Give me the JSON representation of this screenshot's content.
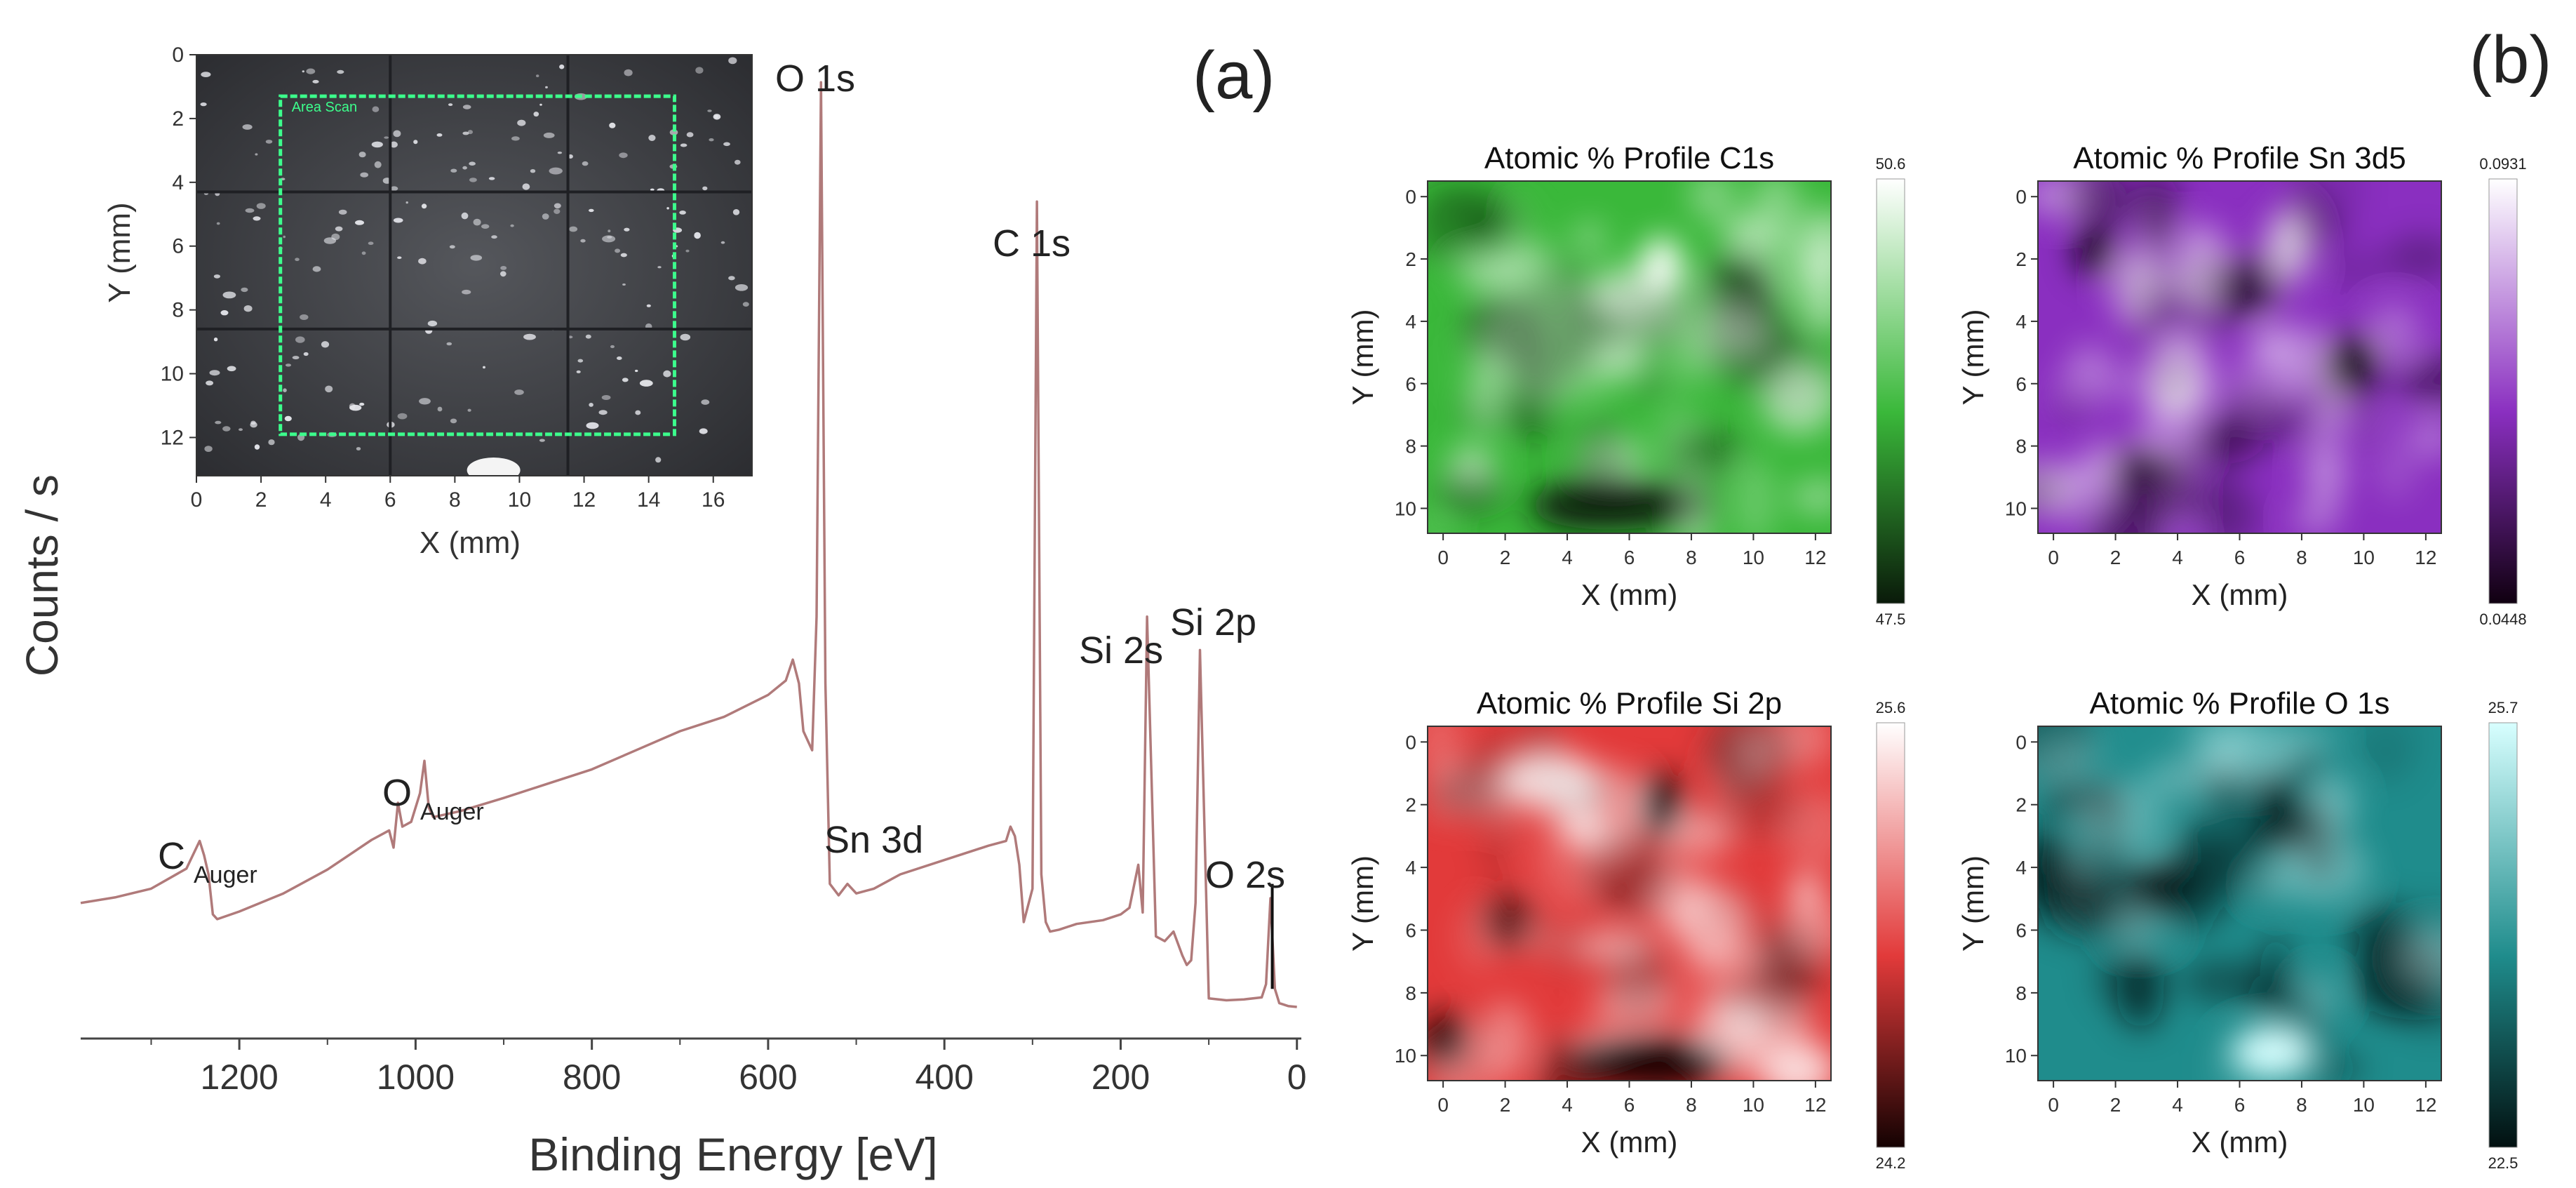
{
  "panel_labels": {
    "a": "(a)",
    "b": "(b)"
  },
  "chart_data": [
    {
      "type": "line",
      "panel": "(a)",
      "title": "",
      "xlabel": "Binding Energy [eV]",
      "ylabel": "Counts / s",
      "xlim": [
        1380,
        -5
      ],
      "x_reversed": true,
      "xticks": [
        "1200",
        "1000",
        "800",
        "600",
        "400",
        "200",
        "0"
      ],
      "xtick_values": [
        1200,
        1000,
        800,
        600,
        400,
        200,
        0
      ],
      "yticks_shown": false,
      "ylim": [
        0,
        100
      ],
      "line_color": "#b07a7a",
      "series": [
        {
          "x": [
            1380,
            1340,
            1300,
            1260,
            1245,
            1240,
            1235,
            1230,
            1225,
            1200,
            1150,
            1100,
            1050,
            1030,
            1025,
            1020,
            1015,
            1005,
            995,
            990,
            985,
            980,
            950,
            900,
            850,
            800,
            750,
            700,
            650,
            600,
            580,
            572,
            565,
            560,
            550,
            545,
            540,
            535,
            530,
            520,
            510,
            500,
            480,
            450,
            400,
            350,
            330,
            325,
            320,
            315,
            310,
            300,
            295,
            290,
            285,
            280,
            270,
            250,
            220,
            200,
            190,
            180,
            175,
            170,
            160,
            150,
            140,
            130,
            125,
            120,
            115,
            110,
            100,
            80,
            60,
            40,
            35,
            30,
            25,
            20,
            10,
            0
          ],
          "y": [
            12.0,
            12.6,
            13.5,
            15.6,
            18.5,
            17.0,
            15.0,
            10.8,
            10.3,
            11.1,
            13.0,
            15.5,
            18.6,
            19.6,
            17.8,
            22.5,
            20.0,
            20.5,
            23.5,
            26.9,
            22.0,
            21.0,
            21.6,
            23.0,
            24.5,
            26.0,
            28.0,
            30.0,
            31.5,
            33.8,
            35.3,
            37.5,
            35.0,
            30.0,
            28.0,
            42.0,
            98.0,
            35.0,
            14.0,
            12.8,
            14.0,
            13.0,
            13.5,
            15.0,
            16.5,
            18.0,
            18.5,
            20.0,
            19.0,
            16.0,
            10.0,
            13.5,
            85.5,
            15.0,
            10.0,
            9.0,
            9.2,
            9.8,
            10.2,
            10.8,
            11.5,
            16.0,
            11.0,
            42.0,
            8.5,
            8.0,
            9.0,
            6.5,
            5.5,
            6.0,
            12.0,
            38.5,
            2.0,
            1.8,
            1.9,
            2.1,
            3.5,
            12.5,
            3.0,
            1.5,
            1.2,
            1.1
          ]
        }
      ],
      "annotations": [
        {
          "text": "O 1s",
          "x": 540
        },
        {
          "text": "C 1s",
          "x": 295
        },
        {
          "text": "Si 2s",
          "x": 160
        },
        {
          "text": "Si 2p",
          "x": 110
        },
        {
          "text": "Sn 3d",
          "x": 510
        },
        {
          "text": "O 2s",
          "x": 28
        },
        {
          "text": "C",
          "sub": "Auger",
          "x": 1260
        },
        {
          "text": "O",
          "sub": "Auger",
          "x": 1000
        }
      ],
      "inset": {
        "type": "image",
        "xlabel": "X (mm)",
        "ylabel": "Y (mm)",
        "xlim": [
          0,
          17.2
        ],
        "ylim": [
          0,
          13.2
        ],
        "xticks": [
          "0",
          "2",
          "4",
          "6",
          "8",
          "10",
          "12",
          "14",
          "16"
        ],
        "xtick_values": [
          0,
          2,
          4,
          6,
          8,
          10,
          12,
          14,
          16
        ],
        "yticks": [
          "0",
          "2",
          "4",
          "6",
          "8",
          "10",
          "12"
        ],
        "ytick_values": [
          0,
          2,
          4,
          6,
          8,
          10,
          12
        ],
        "scan_area": {
          "label": "Area Scan",
          "x0": 2.6,
          "x1": 14.8,
          "y0": 1.3,
          "y1": 11.9,
          "color": "#3cff8c"
        }
      }
    },
    {
      "type": "heatmap",
      "title": "Atomic % Profile C1s",
      "xlabel": "X (mm)",
      "ylabel": "Y (mm)",
      "xticks": [
        "0",
        "2",
        "4",
        "6",
        "8",
        "10",
        "12"
      ],
      "xtick_values": [
        0,
        2,
        4,
        6,
        8,
        10,
        12
      ],
      "yticks": [
        "0",
        "2",
        "4",
        "6",
        "8",
        "10"
      ],
      "ytick_values": [
        0,
        2,
        4,
        6,
        8,
        10
      ],
      "xlim": [
        -0.5,
        12.5
      ],
      "ylim": [
        -0.5,
        10.8
      ],
      "colorbar": {
        "max_label": "50.6",
        "min_label": "47.5",
        "low_color": "#0a1a0a",
        "mid_color": "#3ab83a",
        "high_color": "#ffffff"
      }
    },
    {
      "type": "heatmap",
      "title": "Atomic % Profile Sn 3d5",
      "xlabel": "X (mm)",
      "ylabel": "Y (mm)",
      "xticks": [
        "0",
        "2",
        "4",
        "6",
        "8",
        "10",
        "12"
      ],
      "xtick_values": [
        0,
        2,
        4,
        6,
        8,
        10,
        12
      ],
      "yticks": [
        "0",
        "2",
        "4",
        "6",
        "8",
        "10"
      ],
      "ytick_values": [
        0,
        2,
        4,
        6,
        8,
        10
      ],
      "xlim": [
        -0.5,
        12.5
      ],
      "ylim": [
        -0.5,
        10.8
      ],
      "colorbar": {
        "max_label": "0.0931",
        "min_label": "0.0448",
        "low_color": "#100010",
        "mid_color": "#8a2fc0",
        "high_color": "#ffffff"
      }
    },
    {
      "type": "heatmap",
      "title": "Atomic % Profile Si 2p",
      "xlabel": "X (mm)",
      "ylabel": "Y (mm)",
      "xticks": [
        "0",
        "2",
        "4",
        "6",
        "8",
        "10",
        "12"
      ],
      "xtick_values": [
        0,
        2,
        4,
        6,
        8,
        10,
        12
      ],
      "yticks": [
        "0",
        "2",
        "4",
        "6",
        "8",
        "10"
      ],
      "ytick_values": [
        0,
        2,
        4,
        6,
        8,
        10
      ],
      "xlim": [
        -0.5,
        12.5
      ],
      "ylim": [
        -0.5,
        10.8
      ],
      "colorbar": {
        "max_label": "25.6",
        "min_label": "24.2",
        "low_color": "#140202",
        "mid_color": "#e23a3a",
        "high_color": "#ffffff"
      }
    },
    {
      "type": "heatmap",
      "title": "Atomic % Profile O 1s",
      "xlabel": "X (mm)",
      "ylabel": "Y (mm)",
      "xticks": [
        "0",
        "2",
        "4",
        "6",
        "8",
        "10",
        "12"
      ],
      "xtick_values": [
        0,
        2,
        4,
        6,
        8,
        10,
        12
      ],
      "yticks": [
        "0",
        "2",
        "4",
        "6",
        "8",
        "10"
      ],
      "ytick_values": [
        0,
        2,
        4,
        6,
        8,
        10
      ],
      "xlim": [
        -0.5,
        12.5
      ],
      "ylim": [
        -0.5,
        10.8
      ],
      "colorbar": {
        "max_label": "25.7",
        "min_label": "22.5",
        "low_color": "#021010",
        "mid_color": "#1f8c8c",
        "high_color": "#d8ffff"
      }
    }
  ]
}
